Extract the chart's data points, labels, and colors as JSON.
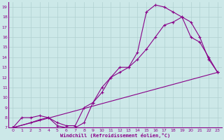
{
  "xlabel": "Windchill (Refroidissement éolien,°C)",
  "ylabel": "",
  "background_color": "#cce8e8",
  "grid_color": "#b0d0d0",
  "line_color": "#880088",
  "marker": "+",
  "xlim": [
    -0.5,
    23.5
  ],
  "ylim": [
    7,
    19.5
  ],
  "xticks": [
    0,
    1,
    2,
    3,
    4,
    5,
    6,
    7,
    8,
    9,
    10,
    11,
    12,
    13,
    14,
    15,
    16,
    17,
    18,
    19,
    20,
    21,
    22,
    23
  ],
  "yticks": [
    7,
    8,
    9,
    10,
    11,
    12,
    13,
    14,
    15,
    16,
    17,
    18,
    19
  ],
  "series1_x": [
    0,
    1,
    2,
    3,
    4,
    5,
    6,
    7,
    8,
    9,
    10,
    11,
    12,
    13,
    14,
    15,
    16,
    17,
    18,
    19,
    20,
    21,
    22,
    23
  ],
  "series1_y": [
    7,
    8,
    8,
    8.2,
    8,
    7.2,
    7,
    7,
    7.5,
    9.5,
    10.5,
    12,
    13,
    13,
    14.5,
    18.5,
    19.2,
    19,
    18.5,
    18,
    17.5,
    16,
    13.8,
    12.5
  ],
  "series2_x": [
    0,
    2,
    3,
    4,
    5,
    6,
    7,
    8,
    9,
    10,
    11,
    12,
    13,
    14,
    15,
    16,
    17,
    18,
    19,
    20,
    21,
    22,
    23
  ],
  "series2_y": [
    7,
    7.5,
    7.8,
    8,
    7.5,
    7.2,
    7.2,
    9,
    9.5,
    11,
    12,
    12.5,
    13,
    13.8,
    14.8,
    16,
    17.2,
    17.5,
    18,
    16,
    15.5,
    14,
    12.5
  ],
  "series3_x": [
    0,
    23
  ],
  "series3_y": [
    7,
    12.5
  ]
}
